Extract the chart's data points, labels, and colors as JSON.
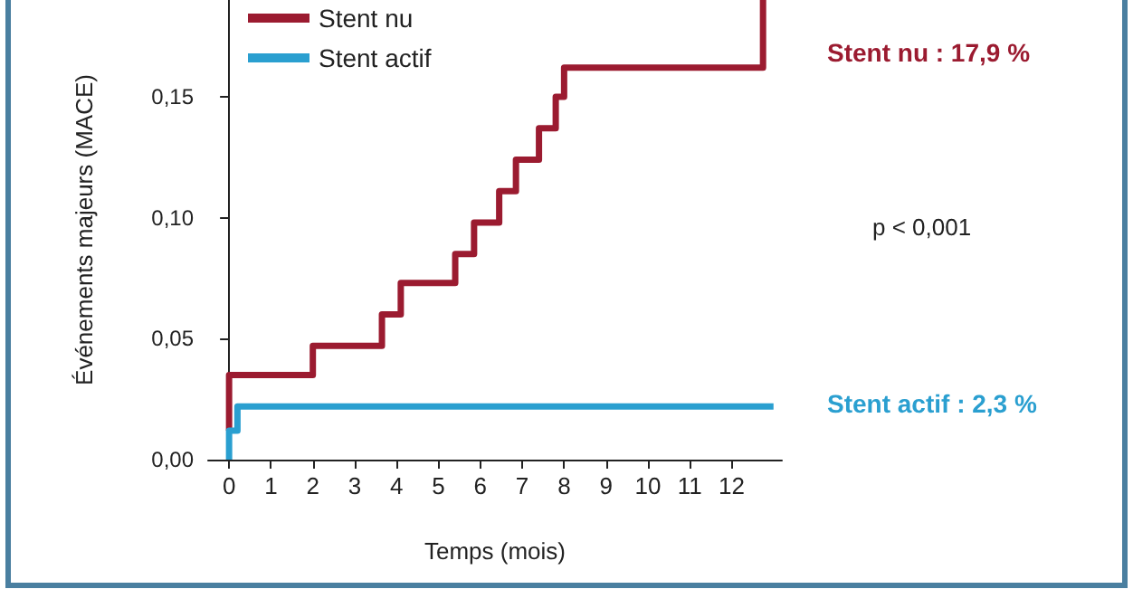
{
  "chart_data": {
    "type": "step",
    "xlabel": "Temps (mois)",
    "ylabel": "Événements majeurs (MACE)",
    "series": [
      {
        "name": "Stent nu",
        "color": "#9b1b30",
        "x": [
          0,
          0,
          2,
          3.65,
          4.1,
          5.4,
          5.85,
          6.45,
          6.85,
          7.4,
          7.8,
          8,
          12.75
        ],
        "values": [
          0.012,
          0.035,
          0.047,
          0.06,
          0.073,
          0.085,
          0.098,
          0.111,
          0.124,
          0.137,
          0.15,
          0.162,
          0.19
        ]
      },
      {
        "name": "Stent actif",
        "color": "#2a9fd0",
        "x": [
          0,
          0,
          0.2,
          13
        ],
        "values": [
          0,
          0.012,
          0.022,
          0.022
        ]
      }
    ],
    "xlim": [
      -0.5,
      13.2
    ],
    "xticks": [
      0,
      1,
      2,
      3,
      4,
      5,
      6,
      7,
      8,
      9,
      10,
      11,
      12
    ],
    "ylim": [
      0,
      0.19
    ],
    "yticks": [
      {
        "value": 0,
        "label": "0,00"
      },
      {
        "value": 0.05,
        "label": "0,05"
      },
      {
        "value": 0.1,
        "label": "0,10"
      },
      {
        "value": 0.15,
        "label": "0,15"
      }
    ],
    "annotations": [
      "Stent nu : 17,9 %",
      "p < 0,001",
      "Stent actif : 2,3 %"
    ],
    "legend": "top left",
    "grid": false,
    "marker": "none",
    "line_style": "solid"
  }
}
